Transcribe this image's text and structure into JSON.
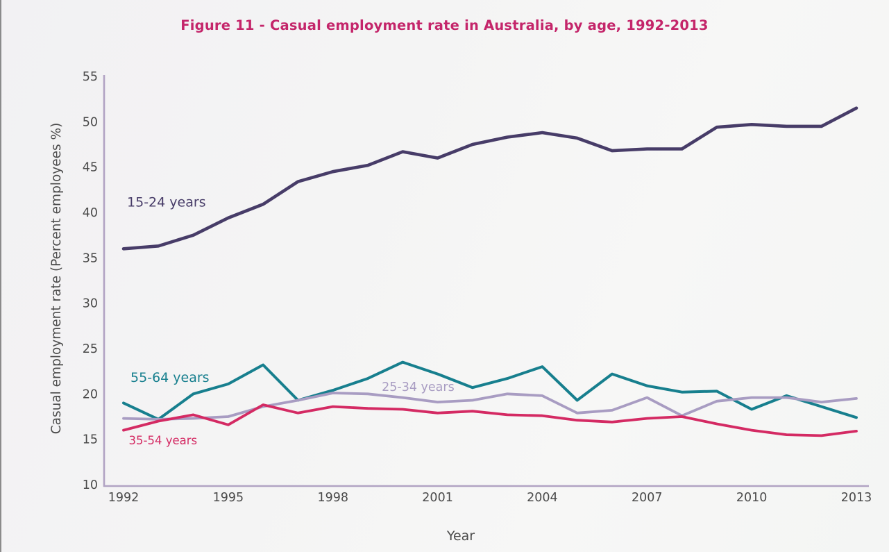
{
  "window": {
    "left_border_color": "#8b8b8b",
    "background": "#f4f4f5"
  },
  "title_color": "#c4256a",
  "axis_color": "#b1a3c3",
  "tick_label_color": "#4a4a4a",
  "chart_data": {
    "type": "line",
    "title": "Figure 11 - Casual employment rate in Australia, by age, 1992-2013",
    "xlabel": "Year",
    "ylabel": "Casual employment rate (Percent employees %)",
    "x": [
      1992,
      1993,
      1994,
      1995,
      1996,
      1997,
      1998,
      1999,
      2000,
      2001,
      2002,
      2003,
      2004,
      2005,
      2006,
      2007,
      2008,
      2009,
      2010,
      2011,
      2012,
      2013
    ],
    "xticks": [
      1992,
      1995,
      1998,
      2001,
      2004,
      2007,
      2010,
      2013
    ],
    "yticks": [
      10,
      15,
      20,
      25,
      30,
      35,
      40,
      45,
      50,
      55
    ],
    "ylim": [
      10,
      55
    ],
    "grid": false,
    "legend_position": "inline-labels",
    "series": [
      {
        "name": "15-24 years",
        "color": "#473c68",
        "stroke_width": 4.6,
        "values": [
          36.0,
          36.3,
          37.5,
          39.4,
          40.9,
          43.4,
          44.5,
          45.2,
          46.7,
          46.0,
          47.5,
          48.3,
          48.8,
          48.2,
          46.8,
          47.0,
          47.0,
          49.4,
          49.7,
          49.5,
          49.5,
          51.5
        ],
        "label": {
          "text": "15-24 years",
          "x": 1992.1,
          "y": 41.1,
          "size": 19
        }
      },
      {
        "name": "55-64 years",
        "color": "#177f8e",
        "stroke_width": 4.0,
        "values": [
          19.0,
          17.2,
          20.0,
          21.1,
          23.2,
          19.3,
          20.4,
          21.7,
          23.5,
          22.2,
          20.7,
          21.7,
          23.0,
          19.3,
          22.2,
          20.9,
          20.2,
          20.3,
          18.3,
          19.8,
          18.6,
          17.4
        ],
        "label": {
          "text": "55-64 years",
          "x": 1992.2,
          "y": 21.8,
          "size": 19
        }
      },
      {
        "name": "25-34 years",
        "color": "#a89cc2",
        "stroke_width": 3.8,
        "values": [
          17.3,
          17.2,
          17.3,
          17.5,
          18.6,
          19.3,
          20.1,
          20.0,
          19.6,
          19.1,
          19.3,
          20.0,
          19.8,
          17.9,
          18.2,
          19.6,
          17.6,
          19.2,
          19.6,
          19.6,
          19.1,
          19.5
        ],
        "label": {
          "text": "25-34 years",
          "x": 1999.4,
          "y": 20.8,
          "size": 17.5
        }
      },
      {
        "name": "35-54 years",
        "color": "#d42a63",
        "stroke_width": 3.8,
        "values": [
          16.0,
          17.0,
          17.7,
          16.6,
          18.8,
          17.9,
          18.6,
          18.4,
          18.3,
          17.9,
          18.1,
          17.7,
          17.6,
          17.1,
          16.9,
          17.3,
          17.5,
          16.7,
          16.0,
          15.5,
          15.4,
          15.9
        ],
        "label": {
          "text": "35-54 years",
          "x": 1992.15,
          "y": 14.9,
          "size": 16.5
        }
      }
    ]
  }
}
